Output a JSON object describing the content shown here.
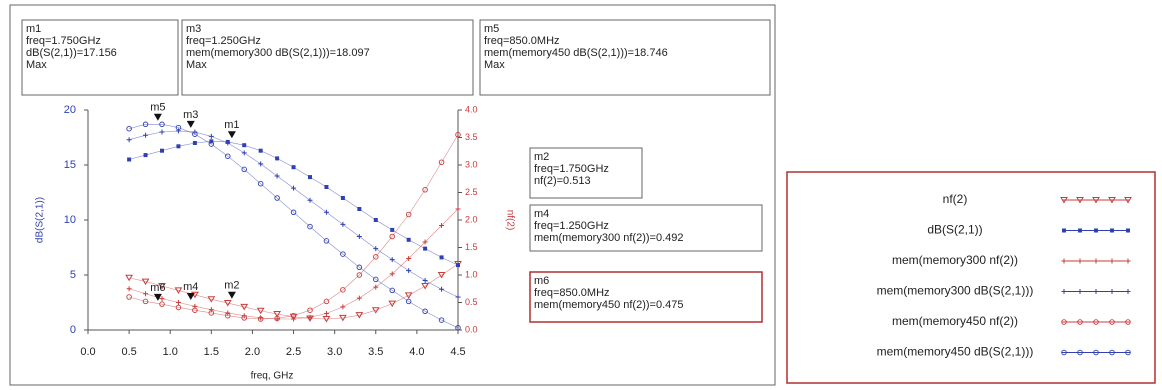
{
  "chart_data": {
    "type": "line",
    "xlabel": "freq, GHz",
    "ylabel": "dB(S(2,1))",
    "y2label": "nf(2)",
    "x": [
      0.5,
      0.7,
      0.9,
      1.1,
      1.3,
      1.5,
      1.7,
      1.9,
      2.1,
      2.3,
      2.5,
      2.7,
      2.9,
      3.1,
      3.3,
      3.5,
      3.7,
      3.9,
      4.1,
      4.3,
      4.5
    ],
    "xlim": [
      0,
      4.5
    ],
    "xticks": [
      {
        "value": 0,
        "label": "0.0"
      },
      {
        "value": 0.5,
        "label": "0.5"
      },
      {
        "value": 1,
        "label": "1.0"
      },
      {
        "value": 1.5,
        "label": "1.5"
      },
      {
        "value": 2,
        "label": "2.0"
      },
      {
        "value": 2.5,
        "label": "2.5"
      },
      {
        "value": 3,
        "label": "3.0"
      },
      {
        "value": 3.5,
        "label": "3.5"
      },
      {
        "value": 4,
        "label": "4.0"
      },
      {
        "value": 4.5,
        "label": "4.5"
      }
    ],
    "ylim": [
      0,
      20
    ],
    "yticks": [
      0,
      5,
      10,
      15,
      20
    ],
    "y2lim": [
      0,
      4
    ],
    "y2ticks": [
      {
        "value": 0,
        "label": "0.0"
      },
      {
        "value": 0.5,
        "label": "0.5"
      },
      {
        "value": 1,
        "label": "1.0"
      },
      {
        "value": 1.5,
        "label": "1.5"
      },
      {
        "value": 2,
        "label": "2.0"
      },
      {
        "value": 2.5,
        "label": "2.5"
      },
      {
        "value": 3,
        "label": "3.0"
      },
      {
        "value": 3.5,
        "label": "3.5"
      },
      {
        "value": 4,
        "label": "4.0"
      }
    ],
    "series": [
      {
        "name": "nf(2)",
        "color": "#c83c3c",
        "marker": "triangle",
        "axis": "y2",
        "values": [
          0.95,
          0.88,
          0.8,
          0.72,
          0.64,
          0.56,
          0.49,
          0.42,
          0.35,
          0.29,
          0.24,
          0.21,
          0.2,
          0.22,
          0.27,
          0.36,
          0.48,
          0.63,
          0.8,
          1.0,
          1.2
        ]
      },
      {
        "name": "dB(S(2,1))",
        "color": "#3040b0",
        "marker": "square",
        "axis": "y",
        "values": [
          15.5,
          15.9,
          16.3,
          16.7,
          17.0,
          17.15,
          17.1,
          16.8,
          16.3,
          15.6,
          14.8,
          13.9,
          13.0,
          12.0,
          11.0,
          10.0,
          9.1,
          8.2,
          7.4,
          6.6,
          5.9
        ]
      },
      {
        "name": "mem(memory300 nf(2))",
        "color": "#c83c3c",
        "marker": "plus",
        "axis": "y2",
        "values": [
          0.75,
          0.66,
          0.57,
          0.5,
          0.43,
          0.37,
          0.31,
          0.26,
          0.22,
          0.2,
          0.2,
          0.23,
          0.3,
          0.42,
          0.58,
          0.78,
          1.02,
          1.3,
          1.6,
          1.9,
          2.2
        ]
      },
      {
        "name": "mem(memory300 dB(S(2,1)))",
        "color": "#3040b0",
        "marker": "plus",
        "axis": "y",
        "values": [
          17.3,
          17.7,
          18.0,
          18.1,
          18.0,
          17.6,
          17.0,
          16.1,
          15.1,
          14.0,
          12.9,
          11.8,
          10.7,
          9.6,
          8.5,
          7.4,
          6.4,
          5.4,
          4.5,
          3.7,
          3.0
        ]
      },
      {
        "name": "mem(memory450 nf(2))",
        "color": "#c83c3c",
        "marker": "circle",
        "axis": "y2",
        "values": [
          0.6,
          0.52,
          0.47,
          0.41,
          0.36,
          0.31,
          0.26,
          0.22,
          0.2,
          0.21,
          0.26,
          0.36,
          0.52,
          0.73,
          1.0,
          1.33,
          1.7,
          2.1,
          2.55,
          3.05,
          3.55
        ]
      },
      {
        "name": "mem(memory450 dB(S(2,1)))",
        "color": "#3040b0",
        "marker": "circle",
        "axis": "y",
        "values": [
          18.3,
          18.7,
          18.7,
          18.4,
          17.8,
          16.9,
          15.8,
          14.6,
          13.3,
          12.0,
          10.7,
          9.4,
          8.1,
          6.9,
          5.7,
          4.6,
          3.6,
          2.6,
          1.7,
          0.9,
          0.2
        ]
      }
    ],
    "markers": [
      {
        "name": "m1",
        "lines": [
          "freq=1.750GHz",
          "dB(S(2,1))=17.156",
          "Max"
        ],
        "x": 1.75,
        "y": 17.156,
        "axis": "y"
      },
      {
        "name": "m3",
        "lines": [
          "freq=1.250GHz",
          "mem(memory300 dB(S(2,1)))=18.097",
          "Max"
        ],
        "x": 1.25,
        "y": 18.097,
        "axis": "y"
      },
      {
        "name": "m5",
        "lines": [
          "freq=850.0MHz",
          "mem(memory450 dB(S(2,1)))=18.746",
          "Max"
        ],
        "x": 0.85,
        "y": 18.746,
        "axis": "y"
      },
      {
        "name": "m2",
        "lines": [
          "freq=1.750GHz",
          "nf(2)=0.513"
        ],
        "x": 1.75,
        "y": 0.513,
        "axis": "y2"
      },
      {
        "name": "m4",
        "lines": [
          "freq=1.250GHz",
          "mem(memory300 nf(2))=0.492"
        ],
        "x": 1.25,
        "y": 0.492,
        "axis": "y2"
      },
      {
        "name": "m6",
        "lines": [
          "freq=850.0MHz",
          "mem(memory450 nf(2))=0.475"
        ],
        "x": 0.85,
        "y": 0.475,
        "axis": "y2"
      }
    ]
  }
}
